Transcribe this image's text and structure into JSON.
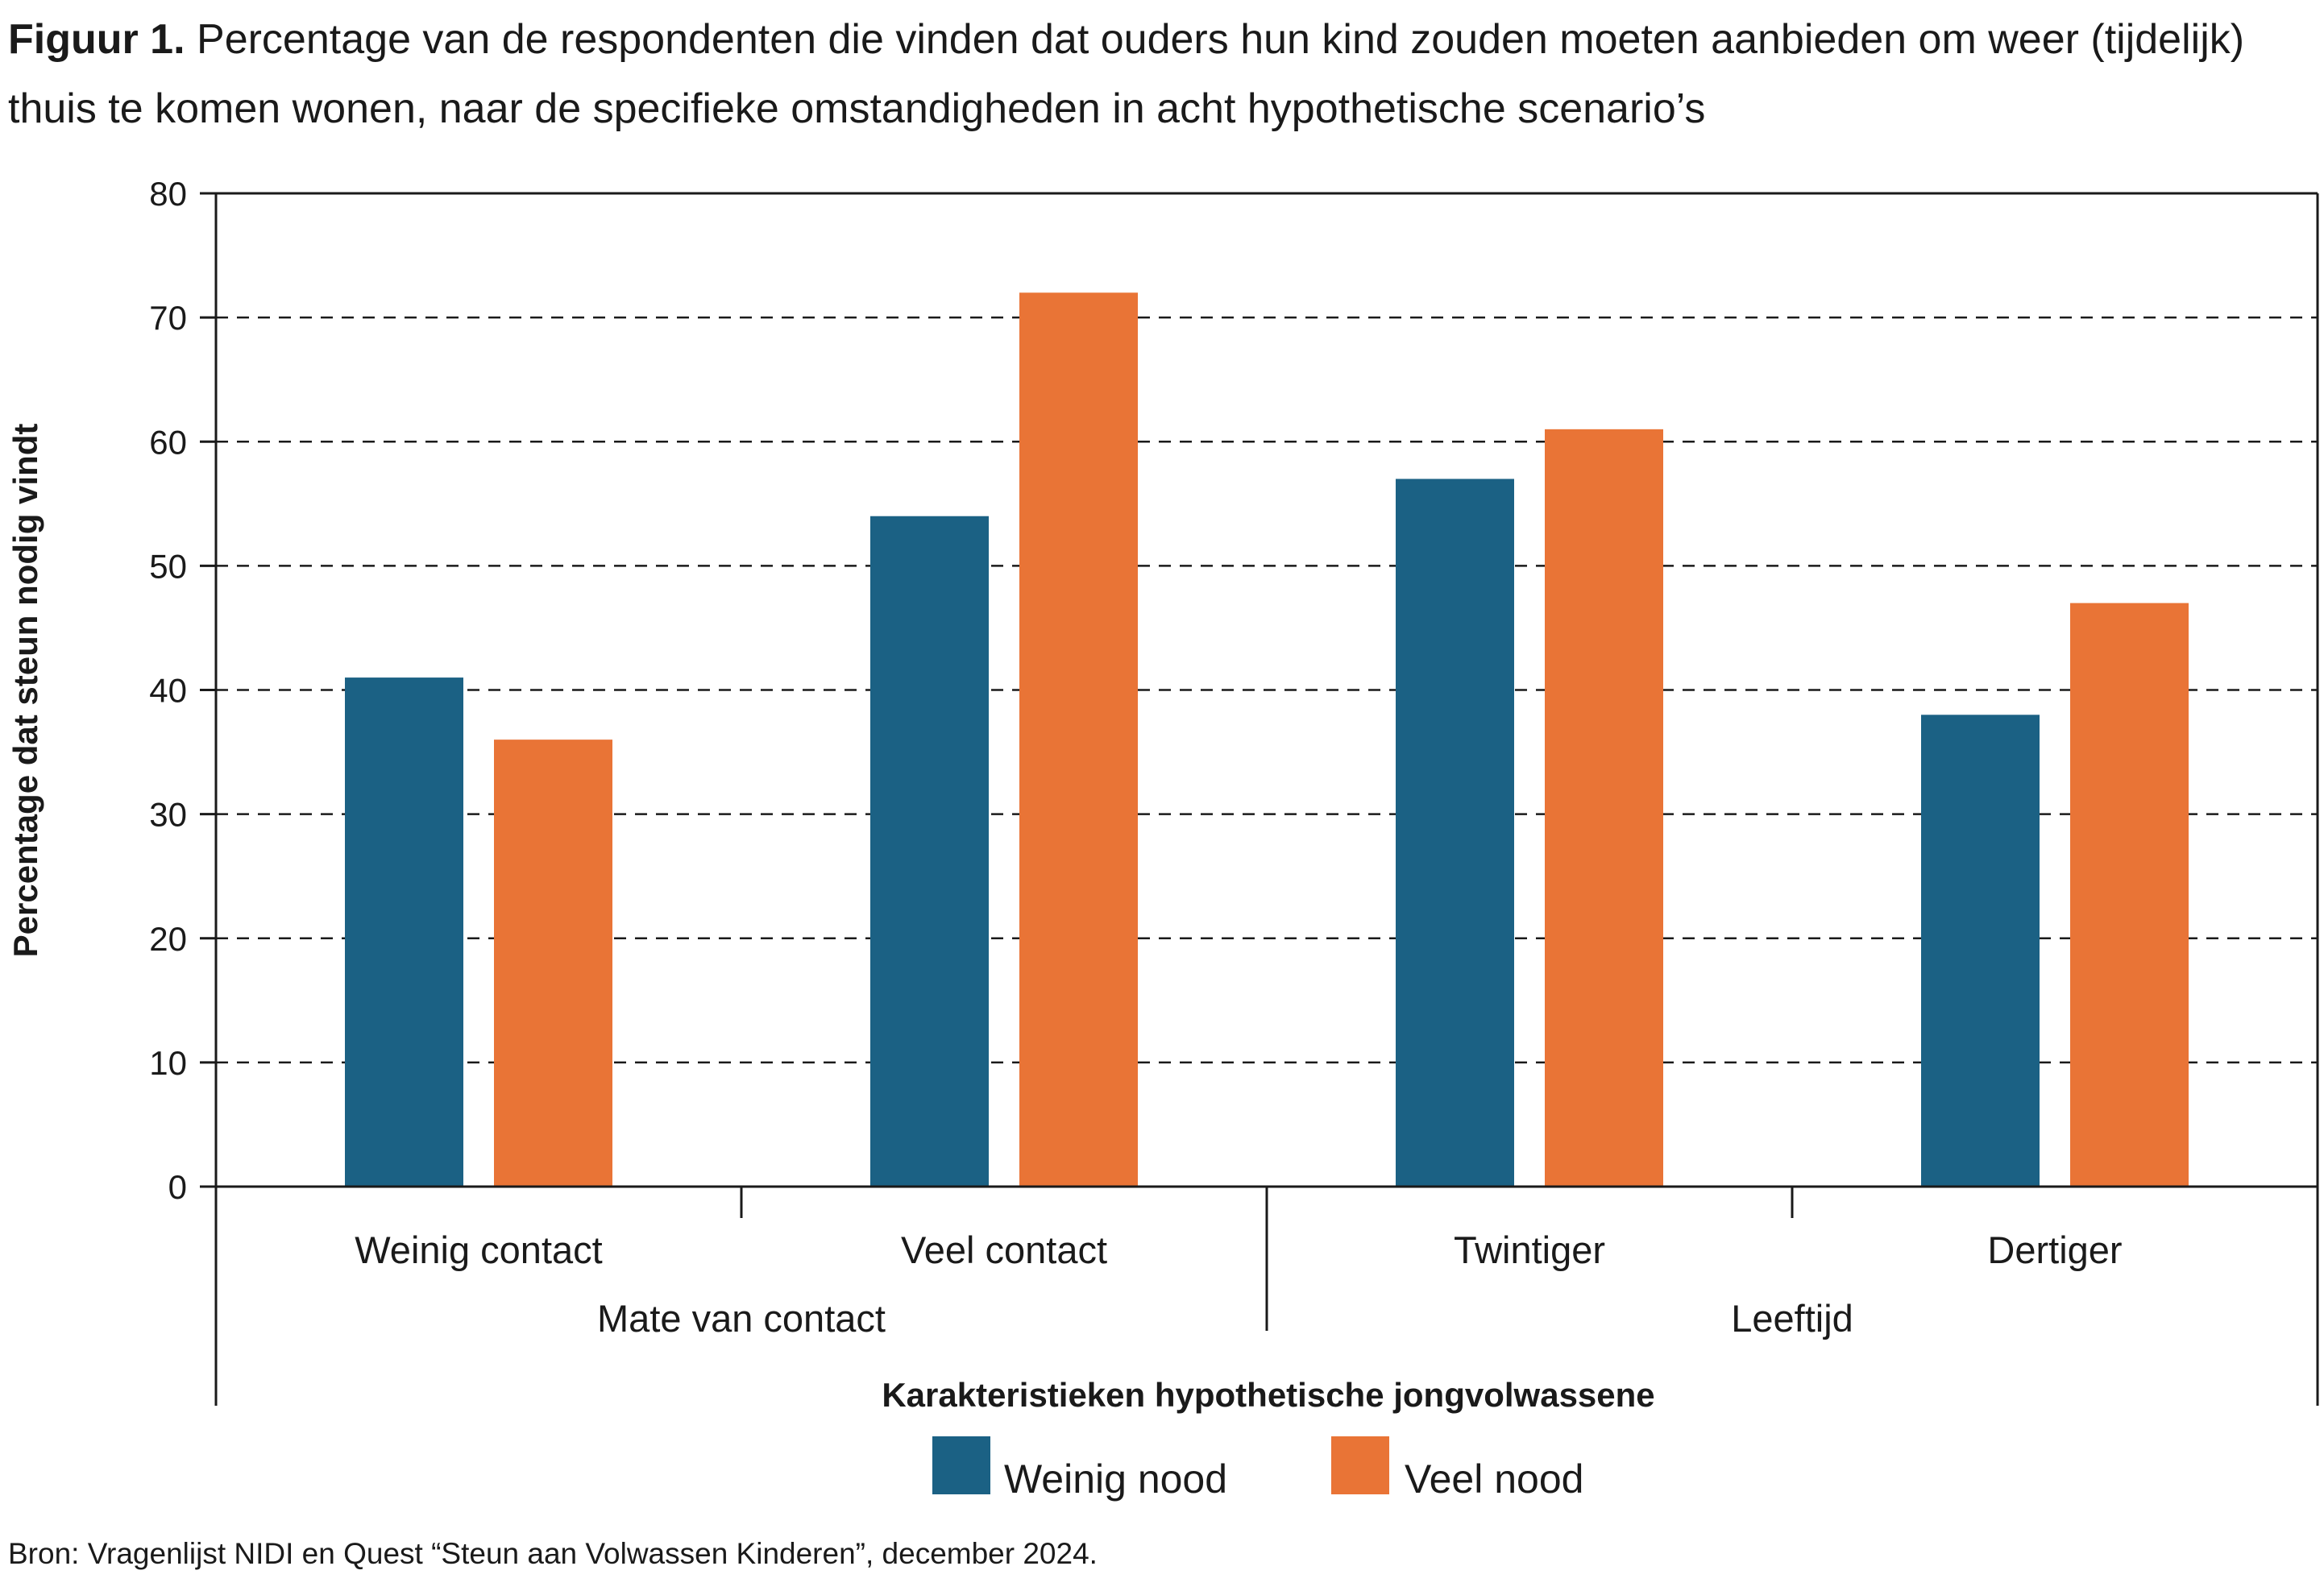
{
  "figure": {
    "label": "Figuur 1.",
    "caption": "Percentage van de respondenten die vinden dat ouders hun kind zouden moeten aanbieden om weer (tijdelijk) thuis te komen wonen, naar de specifieke omstandigheden in acht hypothetische scenario’s",
    "source": "Bron: Vragenlijst NIDI en Quest “Steun aan Volwassen Kinderen”, december 2024."
  },
  "chart_data": {
    "type": "bar",
    "ylabel": "Percentage dat steun nodig vindt",
    "xlabel": "Karakteristieken hypothetische jongvolwassene",
    "ylim": [
      0,
      80
    ],
    "yticks": [
      0,
      10,
      20,
      30,
      40,
      50,
      60,
      70,
      80
    ],
    "grid": "horizontal dashed",
    "categories": [
      "Weinig contact",
      "Veel contact",
      "Twintiger",
      "Dertiger"
    ],
    "groups": [
      {
        "label": "Mate van contact",
        "categories": [
          "Weinig contact",
          "Veel contact"
        ]
      },
      {
        "label": "Leeftijd",
        "categories": [
          "Twintiger",
          "Dertiger"
        ]
      }
    ],
    "series": [
      {
        "name": "Weinig nood",
        "color": "#1b6184",
        "values": [
          41,
          54,
          57,
          38
        ]
      },
      {
        "name": "Veel nood",
        "color": "#e97436",
        "values": [
          36,
          72,
          61,
          47
        ]
      }
    ],
    "legend": "bottom-center"
  }
}
